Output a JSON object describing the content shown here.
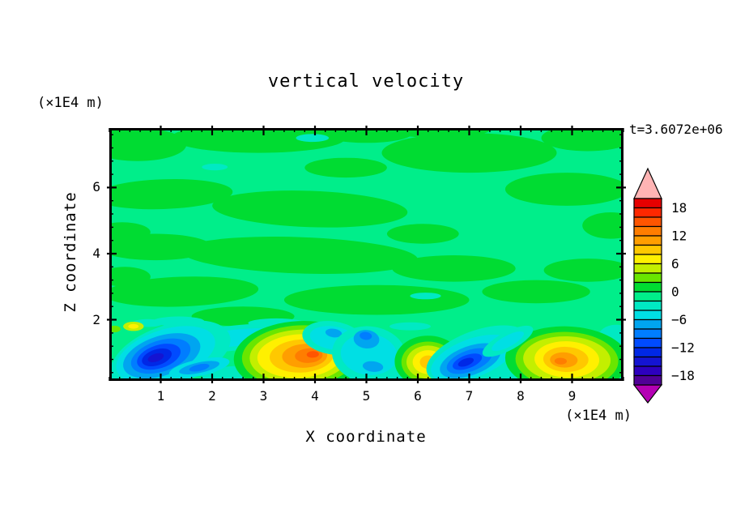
{
  "title": "vertical velocity",
  "time_label": "t=3.6072e+06",
  "figure": {
    "background": "#ffffff",
    "text_color": "#000000",
    "frame_color": "#000000"
  },
  "axes": {
    "x": {
      "label": "X coordinate",
      "units": "(×1E4 m)",
      "min": 0,
      "max": 10,
      "major_ticks": [
        1,
        2,
        3,
        4,
        5,
        6,
        7,
        8,
        9
      ],
      "minor_step": 0.2
    },
    "z": {
      "label": "Z coordinate",
      "units": "(×1E4 m)",
      "min": 0.15,
      "max": 7.8,
      "major_ticks": [
        2,
        4,
        6
      ],
      "minor_step": 0.4
    }
  },
  "chart_data": {
    "type": "filled_contour",
    "title": "vertical velocity",
    "xlabel": "X coordinate",
    "ylabel": "Z coordinate",
    "units_note": "axes in (×1E4 m)",
    "time": "t=3.6072e+06",
    "x_range": [
      0,
      10
    ],
    "z_range": [
      0.15,
      7.8
    ],
    "contour_interval": 2,
    "colorbar": {
      "range": [
        -20,
        20
      ],
      "n_segments": 20,
      "labels": [
        {
          "v": 18,
          "text": "18"
        },
        {
          "v": 12,
          "text": "12"
        },
        {
          "v": 6,
          "text": "6"
        },
        {
          "v": 0,
          "text": "0"
        },
        {
          "v": -6,
          "text": "−6"
        },
        {
          "v": -12,
          "text": "−12"
        },
        {
          "v": -18,
          "text": "−18"
        }
      ],
      "colors_top_to_bottom": [
        "#e60000",
        "#ff2800",
        "#ff5500",
        "#ff7d00",
        "#ff9e00",
        "#ffc800",
        "#fff000",
        "#c3ef00",
        "#69e600",
        "#00dc32",
        "#00ee8a",
        "#00e9c3",
        "#00dfe4",
        "#00a5f0",
        "#007dff",
        "#004bff",
        "#0028e6",
        "#1414d2",
        "#2d00be",
        "#500096"
      ],
      "over_color": "#ffb4b4",
      "under_color": "#b400b4"
    },
    "background_band": {
      "value_range": [
        -2,
        0
      ],
      "color": "#00ee8a"
    },
    "green_patch_color": "#00dc32",
    "neg_patch_color": "#00e9c3",
    "green_patches": [
      [
        0.55,
        7.3,
        0.95,
        0.5,
        0
      ],
      [
        2.9,
        7.5,
        1.7,
        0.45,
        0
      ],
      [
        5.0,
        7.65,
        0.9,
        0.3,
        0
      ],
      [
        7.0,
        7.05,
        1.7,
        0.6,
        0
      ],
      [
        9.3,
        7.5,
        0.9,
        0.4,
        0
      ],
      [
        6.4,
        7.75,
        1.0,
        0.25,
        0
      ],
      [
        1.05,
        5.8,
        1.35,
        0.45,
        -2
      ],
      [
        3.9,
        5.35,
        1.9,
        0.55,
        2
      ],
      [
        0.25,
        4.65,
        0.55,
        0.3,
        0
      ],
      [
        8.9,
        5.95,
        1.2,
        0.5,
        0
      ],
      [
        9.75,
        4.85,
        0.55,
        0.4,
        0
      ],
      [
        4.6,
        6.6,
        0.8,
        0.3,
        0
      ],
      [
        3.7,
        3.95,
        2.3,
        0.55,
        2
      ],
      [
        0.9,
        4.2,
        1.1,
        0.4,
        0
      ],
      [
        6.7,
        3.55,
        1.2,
        0.4,
        0
      ],
      [
        9.3,
        3.5,
        0.85,
        0.35,
        0
      ],
      [
        1.4,
        2.85,
        1.5,
        0.45,
        -2
      ],
      [
        5.2,
        2.6,
        1.8,
        0.45,
        0
      ],
      [
        8.3,
        2.85,
        1.05,
        0.35,
        0
      ],
      [
        2.6,
        2.1,
        1.0,
        0.3,
        0
      ],
      [
        6.1,
        4.6,
        0.7,
        0.3,
        0
      ],
      [
        0.3,
        3.3,
        0.5,
        0.3,
        0
      ]
    ],
    "neg_patches": [
      [
        3.95,
        7.5,
        0.32,
        0.12
      ],
      [
        2.05,
        6.62,
        0.25,
        0.1
      ],
      [
        6.15,
        2.72,
        0.3,
        0.1
      ],
      [
        1.35,
        1.95,
        0.5,
        0.15
      ],
      [
        3.25,
        1.9,
        0.55,
        0.14
      ],
      [
        5.85,
        1.8,
        0.4,
        0.12
      ],
      [
        9.85,
        1.45,
        0.35,
        0.4
      ],
      [
        0.75,
        1.9,
        0.3,
        0.12
      ],
      [
        0.3,
        0.35,
        0.55,
        0.4
      ],
      [
        2.55,
        0.3,
        0.75,
        0.3
      ],
      [
        4.5,
        0.2,
        0.65,
        0.28
      ],
      [
        5.6,
        0.25,
        0.35,
        0.3
      ],
      [
        6.55,
        0.2,
        0.4,
        0.3
      ],
      [
        7.9,
        0.35,
        0.7,
        0.4
      ],
      [
        9.9,
        0.6,
        0.3,
        0.45
      ]
    ],
    "features": [
      {
        "name": "cyan-swath-left",
        "cx": 2.45,
        "cz": 1.45,
        "rot": -6,
        "peak_value": -4,
        "rings": [
          {
            "c": "#00e9c3",
            "rx": 1.25,
            "rz": 0.38
          },
          {
            "c": "#00dfe4",
            "rx": 0.95,
            "rz": 0.25
          },
          {
            "c": "#00a5f0",
            "rx": 0.28,
            "rz": 0.1,
            "dx": -0.45
          }
        ]
      },
      {
        "name": "downdraft-vortex-left",
        "cx": 1.0,
        "cz": 0.9,
        "rot": -18,
        "peak_value": -15,
        "rings": [
          {
            "c": "#00e9c3",
            "rx": 1.2,
            "rz": 0.9,
            "dx": 0.2,
            "dz": -0.05
          },
          {
            "c": "#00dfe4",
            "rx": 1.0,
            "rz": 0.75,
            "dx": 0.1
          },
          {
            "c": "#00a5f0",
            "rx": 0.78,
            "rz": 0.6,
            "dx": 0.02
          },
          {
            "c": "#007dff",
            "rx": 0.6,
            "rz": 0.47
          },
          {
            "c": "#004bff",
            "rx": 0.44,
            "rz": 0.35,
            "dx": -0.04
          },
          {
            "c": "#0028e6",
            "rx": 0.3,
            "rz": 0.24,
            "dx": -0.08
          },
          {
            "c": "#1414d2",
            "rx": 0.16,
            "rz": 0.12,
            "dx": -0.1
          }
        ]
      },
      {
        "name": "vortex-left-tail",
        "cx": 1.75,
        "cz": 0.55,
        "rot": -12,
        "peak_value": -9,
        "rings": [
          {
            "c": "#00dfe4",
            "rx": 0.6,
            "rz": 0.25
          },
          {
            "c": "#00a5f0",
            "rx": 0.4,
            "rz": 0.16
          },
          {
            "c": "#007dff",
            "rx": 0.2,
            "rz": 0.1
          }
        ]
      },
      {
        "name": "updraft-speck-topleft",
        "cx": 0.47,
        "cz": 1.8,
        "rot": 0,
        "peak_value": 7,
        "rings": [
          {
            "c": "#c3ef00",
            "rx": 0.2,
            "rz": 0.14
          },
          {
            "c": "#fff000",
            "rx": 0.1,
            "rz": 0.07
          }
        ]
      },
      {
        "name": "lime-speck-left-edge",
        "cx": 0.1,
        "cz": 1.72,
        "rot": 0,
        "peak_value": 3,
        "rings": [
          {
            "c": "#69e600",
            "rx": 0.12,
            "rz": 0.1
          }
        ]
      },
      {
        "name": "updraft-main",
        "cx": 3.7,
        "cz": 0.9,
        "rot": -3,
        "peak_value": 15,
        "rings": [
          {
            "c": "#00dc32",
            "rx": 1.28,
            "rz": 1.08,
            "dz": -0.02
          },
          {
            "c": "#69e600",
            "rx": 1.12,
            "rz": 0.93
          },
          {
            "c": "#c3ef00",
            "rx": 0.97,
            "rz": 0.8
          },
          {
            "c": "#fff000",
            "rx": 0.82,
            "rz": 0.66
          },
          {
            "c": "#ffc800",
            "rx": 0.62,
            "rz": 0.5,
            "dx": 0.04
          },
          {
            "c": "#ff9e00",
            "rx": 0.44,
            "rz": 0.36,
            "dx": 0.1
          },
          {
            "c": "#ff7d00",
            "rx": 0.27,
            "rz": 0.22,
            "dx": 0.18
          },
          {
            "c": "#ff5500",
            "rx": 0.12,
            "rz": 0.1,
            "dx": 0.26,
            "dz": 0.03
          }
        ]
      },
      {
        "name": "cyan-swath-mid",
        "cx": 4.35,
        "cz": 1.45,
        "rot": 8,
        "peak_value": -5,
        "rings": [
          {
            "c": "#00e9c3",
            "rx": 0.6,
            "rz": 0.5
          },
          {
            "c": "#00dfe4",
            "rx": 0.45,
            "rz": 0.35
          },
          {
            "c": "#00a5f0",
            "rx": 0.16,
            "rz": 0.13,
            "dz": 0.15
          }
        ]
      },
      {
        "name": "cyan-patch-mid",
        "cx": 5.05,
        "cz": 0.95,
        "rot": 6,
        "peak_value": -9,
        "rings": [
          {
            "c": "#00e9c3",
            "rx": 0.72,
            "rz": 0.85
          },
          {
            "c": "#00dfe4",
            "rx": 0.55,
            "rz": 0.62
          },
          {
            "c": "#00a5f0",
            "rx": 0.25,
            "rz": 0.28,
            "dx": -0.08,
            "dz": 0.45
          },
          {
            "c": "#007dff",
            "rx": 0.12,
            "rz": 0.12,
            "dx": -0.1,
            "dz": 0.55
          },
          {
            "c": "#00a5f0",
            "rx": 0.2,
            "rz": 0.16,
            "dx": 0.1,
            "dz": -0.35
          }
        ]
      },
      {
        "name": "updraft-small",
        "cx": 6.2,
        "cz": 0.72,
        "rot": 0,
        "peak_value": 9,
        "rings": [
          {
            "c": "#00dc32",
            "rx": 0.65,
            "rz": 0.78,
            "dz": 0.02
          },
          {
            "c": "#69e600",
            "rx": 0.52,
            "rz": 0.62
          },
          {
            "c": "#c3ef00",
            "rx": 0.42,
            "rz": 0.5
          },
          {
            "c": "#fff000",
            "rx": 0.3,
            "rz": 0.36
          },
          {
            "c": "#ffc800",
            "rx": 0.16,
            "rz": 0.2
          }
        ]
      },
      {
        "name": "downdraft-vortex-right",
        "cx": 7.0,
        "cz": 0.75,
        "rot": -20,
        "peak_value": -13,
        "rings": [
          {
            "c": "#00e9c3",
            "rx": 1.05,
            "rz": 0.72,
            "dx": 0.2,
            "dz": 0.1
          },
          {
            "c": "#00dfe4",
            "rx": 0.85,
            "rz": 0.58,
            "dx": 0.08,
            "dz": 0.05
          },
          {
            "c": "#00a5f0",
            "rx": 0.62,
            "rz": 0.44,
            "dx": 0.02
          },
          {
            "c": "#007dff",
            "rx": 0.46,
            "rz": 0.32
          },
          {
            "c": "#004bff",
            "rx": 0.3,
            "rz": 0.2,
            "dx": -0.04
          },
          {
            "c": "#0028e6",
            "rx": 0.16,
            "rz": 0.11,
            "dx": -0.07
          }
        ]
      },
      {
        "name": "updraft-right",
        "cx": 8.9,
        "cz": 0.8,
        "rot": 2,
        "peak_value": 13,
        "rings": [
          {
            "c": "#00dc32",
            "rx": 1.2,
            "rz": 1.0
          },
          {
            "c": "#69e600",
            "rx": 1.0,
            "rz": 0.85,
            "dz": -0.02
          },
          {
            "c": "#c3ef00",
            "rx": 0.85,
            "rz": 0.7
          },
          {
            "c": "#fff000",
            "rx": 0.63,
            "rz": 0.55
          },
          {
            "c": "#ffc800",
            "rx": 0.44,
            "rz": 0.38,
            "dx": -0.02
          },
          {
            "c": "#ff9e00",
            "rx": 0.27,
            "rz": 0.23,
            "dx": -0.06,
            "dz": -0.02
          },
          {
            "c": "#ff7d00",
            "rx": 0.12,
            "rz": 0.1,
            "dx": -0.12,
            "dz": -0.06
          }
        ]
      },
      {
        "name": "cyan-arm-right",
        "cx": 7.75,
        "cz": 1.35,
        "rot": -28,
        "peak_value": -5,
        "rings": [
          {
            "c": "#00e9c3",
            "rx": 0.55,
            "rz": 0.28
          },
          {
            "c": "#00dfe4",
            "rx": 0.35,
            "rz": 0.17
          }
        ]
      }
    ]
  }
}
